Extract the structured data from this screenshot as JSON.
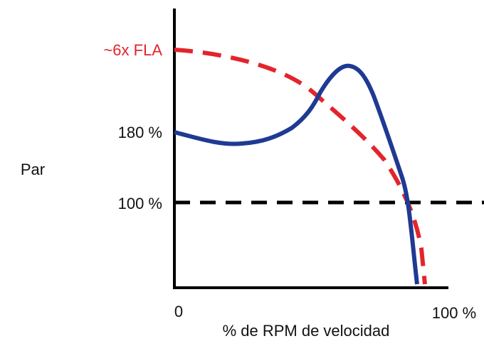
{
  "diagram": {
    "y_axis_title": "Par",
    "y_labels": [
      "~6x FLA",
      "180 %",
      "100 %"
    ],
    "x_labels": [
      "0",
      "100 %"
    ],
    "x_axis_title": "% de RPM de velocidad"
  }
}
